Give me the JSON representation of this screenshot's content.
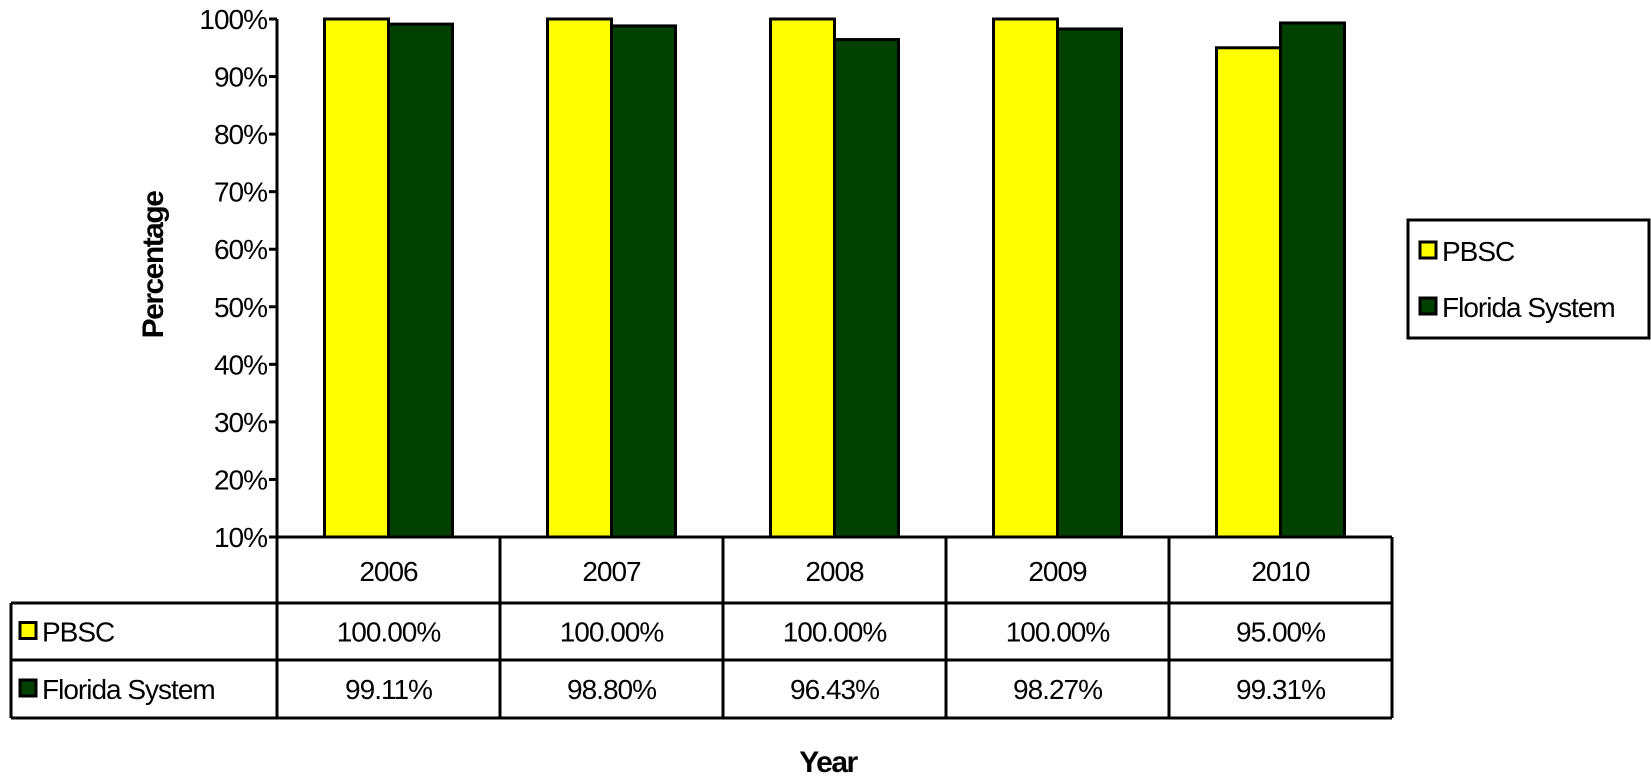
{
  "chart_data": {
    "type": "bar",
    "title": "",
    "xlabel": "Year",
    "ylabel": "Percentage",
    "ylim": [
      0.1,
      1.0
    ],
    "yticks": [
      "10%",
      "20%",
      "30%",
      "40%",
      "50%",
      "60%",
      "70%",
      "80%",
      "90%",
      "100%"
    ],
    "categories": [
      "2006",
      "2007",
      "2008",
      "2009",
      "2010"
    ],
    "series": [
      {
        "name": "PBSC",
        "color": "#FFFF00",
        "values": [
          1.0,
          1.0,
          1.0,
          1.0,
          0.95
        ],
        "labels": [
          "100.00%",
          "100.00%",
          "100.00%",
          "100.00%",
          "95.00%"
        ]
      },
      {
        "name": "Florida System",
        "color": "#004000",
        "values": [
          0.9911,
          0.988,
          0.9643,
          0.9827,
          0.9931
        ],
        "labels": [
          "99.11%",
          "98.80%",
          "96.43%",
          "98.27%",
          "99.31%"
        ]
      }
    ],
    "grid": false,
    "legend_position": "right",
    "data_table": true
  }
}
